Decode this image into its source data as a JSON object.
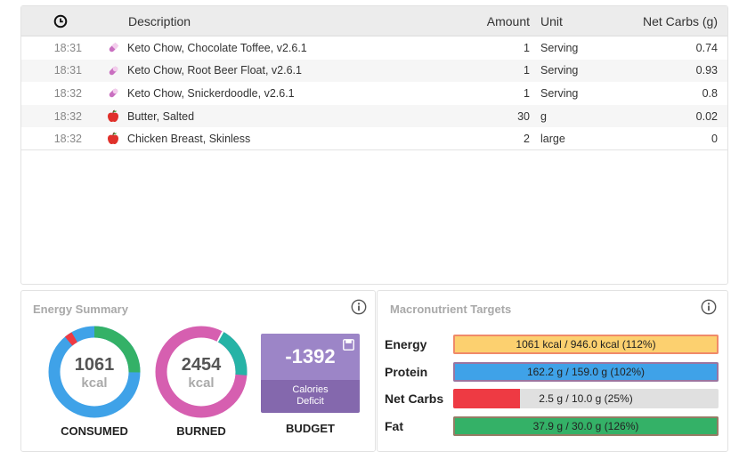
{
  "diary": {
    "columns": {
      "time_icon": "clock-icon",
      "description": "Description",
      "amount": "Amount",
      "unit": "Unit",
      "net_carbs": "Net Carbs (g)"
    },
    "rows": [
      {
        "time": "18:31",
        "icon": "supplement-pill-icon",
        "description": "Keto Chow, Chocolate Toffee, v2.6.1",
        "amount": "1",
        "unit": "Serving",
        "net_carbs": "0.74"
      },
      {
        "time": "18:31",
        "icon": "supplement-pill-icon",
        "description": "Keto Chow, Root Beer Float, v2.6.1",
        "amount": "1",
        "unit": "Serving",
        "net_carbs": "0.93"
      },
      {
        "time": "18:32",
        "icon": "supplement-pill-icon",
        "description": "Keto Chow, Snickerdoodle, v2.6.1",
        "amount": "1",
        "unit": "Serving",
        "net_carbs": "0.8"
      },
      {
        "time": "18:32",
        "icon": "apple-icon",
        "description": "Butter, Salted",
        "amount": "30",
        "unit": "g",
        "net_carbs": "0.02"
      },
      {
        "time": "18:32",
        "icon": "apple-icon",
        "description": "Chicken Breast, Skinless",
        "amount": "2",
        "unit": "large",
        "net_carbs": "0"
      }
    ]
  },
  "energy_summary": {
    "title": "Energy Summary",
    "consumed": {
      "value": "1061",
      "unit": "kcal",
      "label": "CONSUMED"
    },
    "burned": {
      "value": "2454",
      "unit": "kcal",
      "label": "BURNED"
    },
    "budget": {
      "value": "-1392",
      "line1": "Calories",
      "line2": "Deficit",
      "label": "BUDGET"
    }
  },
  "macro_targets": {
    "title": "Macronutrient Targets",
    "rows": [
      {
        "name": "Energy",
        "text": "1061 kcal / 946.0 kcal (112%)",
        "percent": 112,
        "color": "#fcd06f"
      },
      {
        "name": "Protein",
        "text": "162.2 g / 159.0 g (102%)",
        "percent": 102,
        "color": "#3fa2e8"
      },
      {
        "name": "Net Carbs",
        "text": "2.5 g / 10.0 g (25%)",
        "percent": 25,
        "color": "#ee3a43"
      },
      {
        "name": "Fat",
        "text": "37.9 g / 30.0 g (126%)",
        "percent": 126,
        "color": "#34b167"
      }
    ]
  },
  "colors": {
    "consumed_ring_blue": "#3fa2e8",
    "consumed_ring_green": "#34b167",
    "consumed_ring_red": "#ee3a43",
    "burned_ring_pink": "#d65fb0",
    "burned_ring_teal": "#26b3a6",
    "budget_purple": "#9c85c7"
  }
}
